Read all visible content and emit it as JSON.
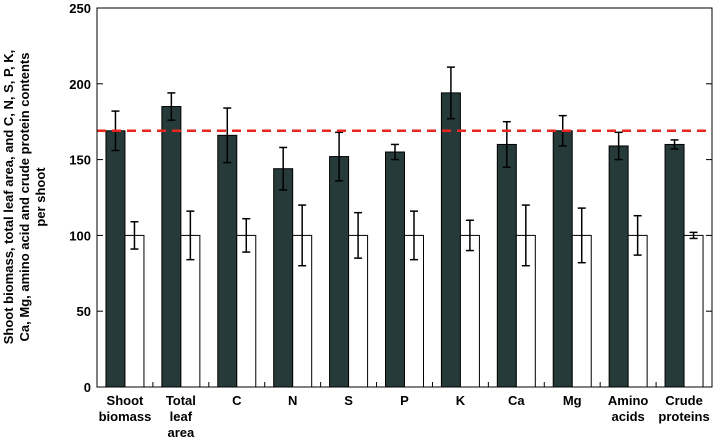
{
  "chart_data": {
    "type": "bar",
    "ylabel_lines": [
      "Shoot biomass, total leaf area, and C, N, S, P, K,",
      "Ca, Mg, amino acid and crude protein contents",
      "per shoot"
    ],
    "categories": [
      [
        "Shoot",
        "biomass"
      ],
      [
        "Total",
        "leaf",
        "area"
      ],
      [
        "C"
      ],
      [
        "N"
      ],
      [
        "S"
      ],
      [
        "P"
      ],
      [
        "K"
      ],
      [
        "Ca"
      ],
      [
        "Mg"
      ],
      [
        "Amino",
        "acids"
      ],
      [
        "Crude",
        "proteins"
      ]
    ],
    "series": [
      {
        "values": [
          169,
          185,
          166,
          144,
          152,
          155,
          194,
          160,
          169,
          159,
          160
        ],
        "errors": [
          13,
          9,
          18,
          14,
          16,
          5,
          17,
          15,
          10,
          9,
          3
        ],
        "color": "#263a3a"
      },
      {
        "values": [
          100,
          100,
          100,
          100,
          100,
          100,
          100,
          100,
          100,
          100,
          100
        ],
        "errors": [
          9,
          16,
          11,
          20,
          15,
          16,
          10,
          20,
          18,
          13,
          2
        ],
        "color": "#ffffff"
      }
    ],
    "reference_line": {
      "value": 169,
      "color": "#e8251f",
      "style": "dashed"
    },
    "ylim": [
      0,
      250
    ],
    "yticks": [
      0,
      50,
      100,
      150,
      200,
      250
    ],
    "grid": false
  }
}
